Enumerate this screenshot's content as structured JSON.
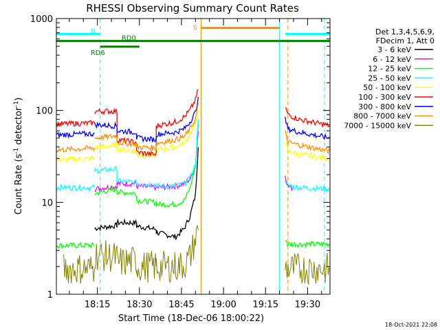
{
  "chart_data": {
    "type": "line",
    "title": "RHESSI Observing Summary Count Rates",
    "xlabel": "Start Time (18-Dec-06 18:00:22)",
    "ylabel": "Count Rate (s^-1 detector^-1)",
    "ylabel_parts": {
      "pre": "Count Rate (s",
      "sup1": "-1",
      "mid": " detector",
      "sup2": "-1",
      "post": ")"
    },
    "yscale": "log",
    "xlim": [
      "18:00:22",
      "19:38:00"
    ],
    "ylim": [
      1,
      1000
    ],
    "x_ticks": [
      "18:15",
      "18:30",
      "18:45",
      "19:00",
      "19:15",
      "19:30"
    ],
    "y_ticks": [
      "1",
      "10",
      "100",
      "1000"
    ],
    "legend_header": [
      "Det 1,3,4,5,6,9,",
      "FDecim 1, Att 0"
    ],
    "timestamp": "18-Oct-2021 22:08",
    "gap": [
      "18:51:00",
      "19:22:00"
    ],
    "series": [
      {
        "name": "3 - 6 keV",
        "color": "#000000",
        "segments": [
          {
            "x": [
              "18:14",
              "18:22",
              "18:22",
              "18:29",
              "18:29",
              "18:36",
              "18:36",
              "18:43",
              "18:46",
              "18:48",
              "18:50",
              "18:51"
            ],
            "y": [
              5.2,
              5.6,
              6.0,
              6.0,
              5.5,
              5.1,
              4.7,
              4.2,
              5.2,
              7.0,
              12,
              40
            ]
          }
        ]
      },
      {
        "name": "6 - 12 keV",
        "color": "#ff00ff",
        "segments": [
          {
            "x": [
              "18:14",
              "18:22",
              "18:22",
              "18:29",
              "18:29",
              "18:36",
              "18:36",
              "18:43",
              "18:46",
              "18:48",
              "18:50",
              "18:51"
            ],
            "y": [
              14,
              15,
              16,
              16,
              15,
              14.5,
              14.5,
              15,
              16,
              18,
              25,
              60
            ]
          },
          {
            "x": [
              "19:22",
              "19:23",
              "19:25"
            ],
            "y": [
              20,
              15,
              14
            ]
          }
        ]
      },
      {
        "name": "12 - 25 keV",
        "color": "#00ff00",
        "segments": [
          {
            "x": [
              "18:00:22",
              "18:14"
            ],
            "y": [
              3.4,
              3.4
            ]
          },
          {
            "x": [
              "18:14",
              "18:22",
              "18:22",
              "18:29",
              "18:29",
              "18:36",
              "18:36",
              "18:43",
              "18:46",
              "18:48",
              "18:50",
              "18:51"
            ],
            "y": [
              12.5,
              14,
              13,
              12.5,
              10.5,
              10,
              9.5,
              9.5,
              10.5,
              14,
              25,
              70
            ]
          },
          {
            "x": [
              "19:22",
              "19:23",
              "19:38"
            ],
            "y": [
              4,
              3.5,
              3.5
            ]
          }
        ]
      },
      {
        "name": "25 - 50 keV",
        "color": "#00ffff",
        "segments": [
          {
            "x": [
              "18:00:22",
              "18:14"
            ],
            "y": [
              14.5,
              14.5
            ]
          },
          {
            "x": [
              "18:14",
              "18:22",
              "18:22",
              "18:29",
              "18:29",
              "18:36",
              "18:36",
              "18:43",
              "18:46",
              "18:48",
              "18:50",
              "18:51"
            ],
            "y": [
              22,
              23,
              17,
              16.5,
              16,
              15.5,
              15,
              15,
              16,
              18,
              25,
              80
            ]
          },
          {
            "x": [
              "19:22",
              "19:23",
              "19:27",
              "19:38"
            ],
            "y": [
              18,
              15,
              14.5,
              14
            ]
          }
        ]
      },
      {
        "name": "50 - 100 keV",
        "color": "#ffff00",
        "segments": [
          {
            "x": [
              "18:00:22",
              "18:14"
            ],
            "y": [
              29,
              30
            ]
          },
          {
            "x": [
              "18:14",
              "18:22",
              "18:22",
              "18:29",
              "18:29",
              "18:36",
              "18:36",
              "18:43",
              "18:46",
              "18:48",
              "18:50",
              "18:51"
            ],
            "y": [
              39,
              42,
              38,
              36,
              33,
              32,
              37,
              40,
              44,
              55,
              70,
              100
            ]
          },
          {
            "x": [
              "19:22",
              "19:23",
              "19:27",
              "19:38"
            ],
            "y": [
              45,
              36,
              33,
              30
            ]
          }
        ]
      },
      {
        "name": "100 - 300 keV",
        "color": "#ff0000",
        "segments": [
          {
            "x": [
              "18:00:22",
              "18:14"
            ],
            "y": [
              71,
              73
            ]
          },
          {
            "x": [
              "18:14",
              "18:22",
              "18:22",
              "18:29",
              "18:29",
              "18:36",
              "18:36",
              "18:43",
              "18:46",
              "18:48",
              "18:50",
              "18:51"
            ],
            "y": [
              98,
              98,
              48,
              45,
              35,
              33,
              68,
              75,
              85,
              100,
              130,
              170
            ]
          },
          {
            "x": [
              "19:22",
              "19:23",
              "19:27",
              "19:38"
            ],
            "y": [
              110,
              90,
              80,
              68
            ]
          }
        ]
      },
      {
        "name": "300 - 800 keV",
        "color": "#0000ff",
        "segments": [
          {
            "x": [
              "18:00:22",
              "18:14"
            ],
            "y": [
              54,
              56
            ]
          },
          {
            "x": [
              "18:14",
              "18:22",
              "18:22",
              "18:29",
              "18:29",
              "18:36",
              "18:36",
              "18:43",
              "18:46",
              "18:48",
              "18:50",
              "18:51"
            ],
            "y": [
              70,
              68,
              60,
              58,
              50,
              48,
              55,
              58,
              63,
              75,
              95,
              140
            ]
          },
          {
            "x": [
              "19:22",
              "19:23",
              "19:27",
              "19:38"
            ],
            "y": [
              80,
              63,
              58,
              50
            ]
          }
        ]
      },
      {
        "name": "800 - 7000 keV",
        "color": "#ff8c00",
        "segments": [
          {
            "x": [
              "18:00:22",
              "18:14"
            ],
            "y": [
              37,
              39
            ]
          },
          {
            "x": [
              "18:14",
              "18:22",
              "18:22",
              "18:29",
              "18:29",
              "18:36",
              "18:36",
              "18:43",
              "18:46",
              "18:48",
              "18:50",
              "18:51"
            ],
            "y": [
              50,
              53,
              45,
              43,
              40,
              39,
              44,
              48,
              52,
              62,
              80,
              120
            ]
          },
          {
            "x": [
              "19:22",
              "19:23",
              "19:27",
              "19:38"
            ],
            "y": [
              58,
              45,
              42,
              36
            ]
          }
        ]
      },
      {
        "name": "7000 - 15000 keV",
        "color": "#808000",
        "segments": [
          {
            "x": [
              "18:03",
              "18:14"
            ],
            "y": [
              1.9,
              1.9
            ]
          },
          {
            "x": [
              "18:14",
              "18:22",
              "18:22",
              "18:29",
              "18:29",
              "18:36",
              "18:36",
              "18:43",
              "18:46",
              "18:48",
              "18:50",
              "18:51"
            ],
            "y": [
              2.7,
              2.5,
              2.2,
              2.3,
              2.0,
              2.0,
              2.0,
              2.0,
              2.1,
              2.5,
              4,
              5
            ]
          },
          {
            "x": [
              "19:22",
              "19:23",
              "19:38"
            ],
            "y": [
              2.0,
              1.9,
              1.9
            ]
          }
        ]
      }
    ],
    "annotations": [
      {
        "label": "N",
        "color": "#00ffff",
        "type": "bar",
        "x": [
          "18:00:22",
          "18:16"
        ],
        "y": 680
      },
      {
        "label": "",
        "color": "#00ffff",
        "type": "bar",
        "x": [
          "19:22",
          "19:38"
        ],
        "y": 680
      },
      {
        "label": "S",
        "color": "#ff8c00",
        "type": "bar",
        "x": [
          "18:52",
          "19:20"
        ],
        "y": 790
      },
      {
        "label": "RD0",
        "color": "#008000",
        "type": "bar",
        "x": [
          "18:00:22",
          "19:38"
        ],
        "y": 570
      },
      {
        "label": "RD6",
        "color": "#008000",
        "type": "bar",
        "x": [
          "18:16",
          "18:30"
        ],
        "y": 495
      }
    ],
    "vlines": [
      {
        "x": "18:00:22",
        "color": "#00ffff",
        "dash": false
      },
      {
        "x": "18:16",
        "color": "#00ffff",
        "dash": true
      },
      {
        "x": "18:52",
        "color": "#ff8c00",
        "dash": false
      },
      {
        "x": "19:20",
        "color": "#00ffff",
        "dash": false
      },
      {
        "x": "19:23",
        "color": "#ff8c00",
        "dash": true
      },
      {
        "x": "19:36",
        "color": "#00ffff",
        "dash": true
      }
    ]
  }
}
